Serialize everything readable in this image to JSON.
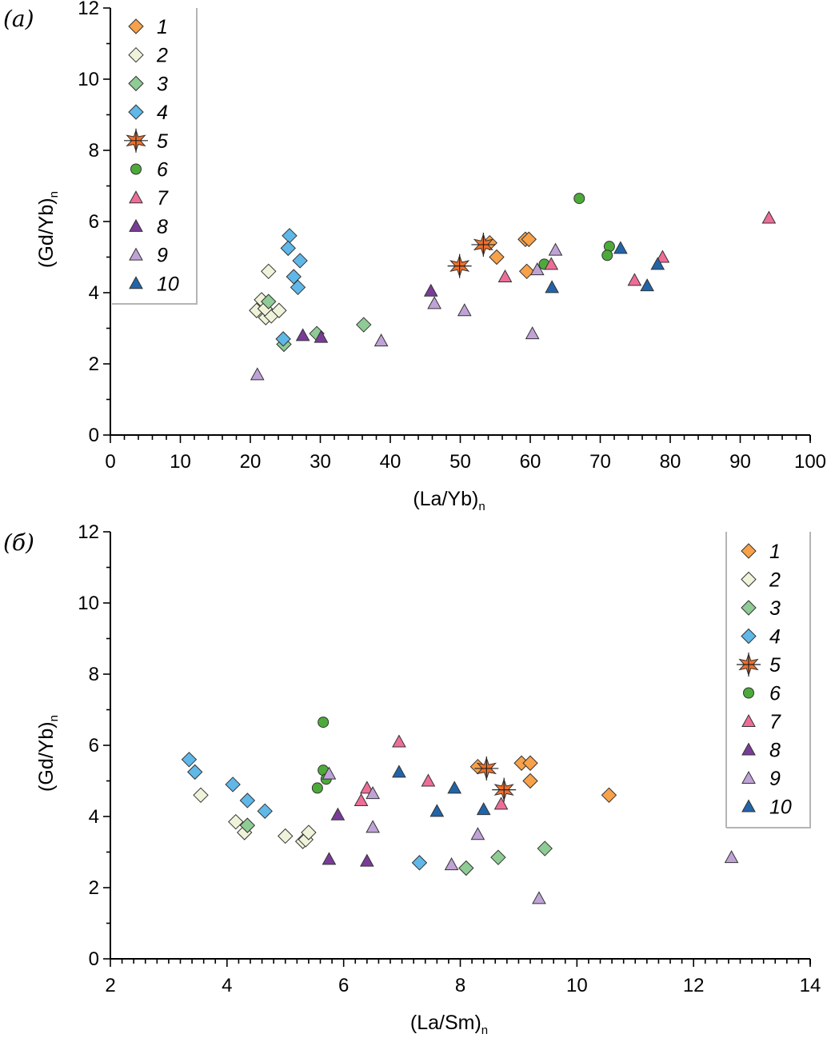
{
  "figure": {
    "colors": {
      "1": "#F7A14A",
      "2": "#EEF3D9",
      "3": "#8FCB95",
      "4": "#5FB8E8",
      "5": "#F06F2A",
      "6": "#4DAA3A",
      "7": "#EE6D96",
      "8": "#7A3C98",
      "9": "#BFA3D6",
      "10": "#2264A8"
    },
    "markers": {
      "1": "diamond",
      "2": "diamond",
      "3": "diamond",
      "4": "diamond",
      "5": "star",
      "6": "circle",
      "7": "triangle",
      "8": "triangle",
      "9": "triangle",
      "10": "triangle"
    },
    "legend_entries": [
      "1",
      "2",
      "3",
      "4",
      "5",
      "6",
      "7",
      "8",
      "9",
      "10"
    ]
  },
  "chart_data": [
    {
      "type": "scatter",
      "panel_label": "(а)",
      "xlabel": "(La/Yb)",
      "xlabel_sub": "n",
      "ylabel": "(Gd/Yb)",
      "ylabel_sub": "n",
      "xlim": [
        0,
        100
      ],
      "ylim": [
        0,
        12
      ],
      "xticks": [
        0,
        10,
        20,
        30,
        40,
        50,
        60,
        70,
        80,
        90,
        100
      ],
      "yticks": [
        0,
        2,
        4,
        6,
        8,
        10,
        12
      ],
      "x_minor_step": 2,
      "y_minor_step": 1,
      "legend_position": "top-left",
      "series": [
        {
          "name": "1",
          "points": [
            [
              54.2,
              5.4
            ],
            [
              55.2,
              5.0
            ],
            [
              59.3,
              5.5
            ],
            [
              59.8,
              5.5
            ],
            [
              59.5,
              4.6
            ]
          ]
        },
        {
          "name": "2",
          "points": [
            [
              22.6,
              4.6
            ],
            [
              21.6,
              3.8
            ],
            [
              20.9,
              3.5
            ],
            [
              22.2,
              3.3
            ],
            [
              23.0,
              3.35
            ],
            [
              24.1,
              3.5
            ],
            [
              22.1,
              3.55
            ]
          ]
        },
        {
          "name": "3",
          "points": [
            [
              22.6,
              3.75
            ],
            [
              29.5,
              2.85
            ],
            [
              36.2,
              3.1
            ],
            [
              24.8,
              2.55
            ]
          ]
        },
        {
          "name": "4",
          "points": [
            [
              25.6,
              5.6
            ],
            [
              25.4,
              5.25
            ],
            [
              27.1,
              4.9
            ],
            [
              26.2,
              4.45
            ],
            [
              26.8,
              4.15
            ],
            [
              24.7,
              2.7
            ]
          ]
        },
        {
          "name": "5",
          "points": [
            [
              53.3,
              5.35
            ],
            [
              49.9,
              4.75
            ]
          ]
        },
        {
          "name": "6",
          "points": [
            [
              67.0,
              6.65
            ],
            [
              71.3,
              5.3
            ],
            [
              71.0,
              5.05
            ],
            [
              62.0,
              4.8
            ]
          ]
        },
        {
          "name": "7",
          "points": [
            [
              94.1,
              6.1
            ],
            [
              78.9,
              5.0
            ],
            [
              63.0,
              4.8
            ],
            [
              56.4,
              4.45
            ],
            [
              74.9,
              4.35
            ]
          ]
        },
        {
          "name": "8",
          "points": [
            [
              45.8,
              4.05
            ],
            [
              27.5,
              2.8
            ],
            [
              30.1,
              2.75
            ]
          ]
        },
        {
          "name": "9",
          "points": [
            [
              63.6,
              5.2
            ],
            [
              61.0,
              4.65
            ],
            [
              46.3,
              3.7
            ],
            [
              50.6,
              3.5
            ],
            [
              38.7,
              2.65
            ],
            [
              60.3,
              2.85
            ],
            [
              21.0,
              1.7
            ]
          ]
        },
        {
          "name": "10",
          "points": [
            [
              72.9,
              5.25
            ],
            [
              78.2,
              4.8
            ],
            [
              63.1,
              4.15
            ],
            [
              76.7,
              4.2
            ]
          ]
        }
      ]
    },
    {
      "type": "scatter",
      "panel_label": "(б)",
      "xlabel": "(La/Sm)",
      "xlabel_sub": "n",
      "ylabel": "(Gd/Yb)",
      "ylabel_sub": "n",
      "xlim": [
        2,
        14
      ],
      "ylim": [
        0,
        12
      ],
      "xticks": [
        2,
        4,
        6,
        8,
        10,
        12,
        14
      ],
      "yticks": [
        0,
        2,
        4,
        6,
        8,
        10,
        12
      ],
      "x_minor_step": 0.2,
      "y_minor_step": 1,
      "legend_position": "top-right",
      "series": [
        {
          "name": "1",
          "points": [
            [
              8.3,
              5.4
            ],
            [
              9.05,
              5.5
            ],
            [
              9.2,
              5.5
            ],
            [
              9.2,
              5.0
            ],
            [
              10.55,
              4.6
            ]
          ]
        },
        {
          "name": "2",
          "points": [
            [
              3.55,
              4.6
            ],
            [
              4.15,
              3.85
            ],
            [
              4.3,
              3.55
            ],
            [
              5.0,
              3.45
            ],
            [
              5.3,
              3.3
            ],
            [
              5.35,
              3.35
            ],
            [
              5.4,
              3.55
            ]
          ]
        },
        {
          "name": "3",
          "points": [
            [
              4.35,
              3.75
            ],
            [
              8.65,
              2.85
            ],
            [
              9.45,
              3.1
            ],
            [
              8.1,
              2.55
            ]
          ]
        },
        {
          "name": "4",
          "points": [
            [
              3.35,
              5.6
            ],
            [
              3.45,
              5.25
            ],
            [
              4.1,
              4.9
            ],
            [
              4.35,
              4.45
            ],
            [
              4.65,
              4.15
            ],
            [
              7.3,
              2.7
            ]
          ]
        },
        {
          "name": "5",
          "points": [
            [
              8.45,
              5.35
            ],
            [
              8.75,
              4.75
            ]
          ]
        },
        {
          "name": "6",
          "points": [
            [
              5.65,
              6.65
            ],
            [
              5.65,
              5.3
            ],
            [
              5.7,
              5.05
            ],
            [
              5.55,
              4.8
            ]
          ]
        },
        {
          "name": "7",
          "points": [
            [
              6.95,
              6.1
            ],
            [
              7.45,
              5.0
            ],
            [
              6.4,
              4.8
            ],
            [
              6.3,
              4.45
            ],
            [
              8.7,
              4.35
            ]
          ]
        },
        {
          "name": "8",
          "points": [
            [
              5.9,
              4.05
            ],
            [
              5.75,
              2.8
            ],
            [
              6.4,
              2.75
            ]
          ]
        },
        {
          "name": "9",
          "points": [
            [
              5.75,
              5.2
            ],
            [
              6.5,
              4.65
            ],
            [
              6.5,
              3.7
            ],
            [
              8.3,
              3.5
            ],
            [
              7.85,
              2.65
            ],
            [
              12.65,
              2.85
            ],
            [
              9.35,
              1.7
            ]
          ]
        },
        {
          "name": "10",
          "points": [
            [
              6.95,
              5.25
            ],
            [
              7.9,
              4.8
            ],
            [
              7.6,
              4.15
            ],
            [
              8.4,
              4.2
            ]
          ]
        }
      ]
    }
  ]
}
